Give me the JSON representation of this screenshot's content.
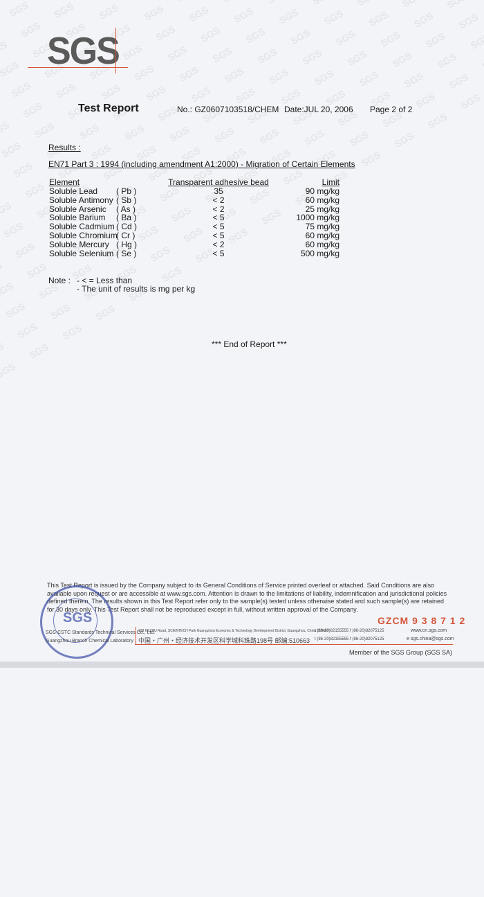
{
  "header": {
    "logo": "SGS",
    "title": "Test Report",
    "report_no": "No.: GZ0607103518/CHEM",
    "date": "Date:JUL 20, 2006",
    "page": "Page 2 of  2"
  },
  "results": {
    "label": "Results :",
    "standard": "EN71 Part 3 : 1994 (including amendment A1:2000) - Migration of Certain Elements",
    "columns": [
      "Element",
      "Transparent adhesive bead",
      "Limit"
    ],
    "rows": [
      {
        "name": "Soluble Lead",
        "symbol": "( Pb )",
        "result": "35",
        "limit": "90 mg/kg"
      },
      {
        "name": "Soluble Antimony",
        "symbol": "( Sb )",
        "result": "< 2",
        "limit": "60 mg/kg"
      },
      {
        "name": "Soluble Arsenic",
        "symbol": "( As )",
        "result": "< 2",
        "limit": "25 mg/kg"
      },
      {
        "name": "Soluble Barium",
        "symbol": "( Ba )",
        "result": "< 5",
        "limit": "1000 mg/kg"
      },
      {
        "name": "Soluble Cadmium",
        "symbol": "( Cd )",
        "result": "< 5",
        "limit": "75 mg/kg"
      },
      {
        "name": "Soluble Chromium",
        "symbol": "( Cr )",
        "result": "< 5",
        "limit": "60 mg/kg"
      },
      {
        "name": "Soluble Mercury",
        "symbol": "( Hg )",
        "result": "< 2",
        "limit": "60 mg/kg"
      },
      {
        "name": "Soluble Selenium",
        "symbol": "( Se )",
        "result": "< 5",
        "limit": "500 mg/kg"
      }
    ]
  },
  "note": {
    "label": "Note :",
    "line1": "- < = Less than",
    "line2": "- The unit of results is mg per kg"
  },
  "end": "*** End of Report ***",
  "footer": {
    "disclaimer": "This Test Report is issued by the Company subject to its General Conditions of Service printed overleaf or attached. Said Conditions are also available upon request or  are accessible at www.sgs.com. Attention is drawn to the limitations of liability, indemnification and jurisdictional policies defined therein. The results shown in this Test Report refer only to the sample(s) tested unless otherwise stated and such sample(s) are retained for 30 days only. This Test Report shall not be reproduced except in full, without written approval of the Company.",
    "serial": "GZCM  9 3 8 7 1 2",
    "company1": "SGS-CSTC Standards Technical Services Co., Ltd.",
    "company2": "Guangzhou Branch Chemical Laboratory",
    "address_en": "198 KEZHU Road, SCIENTECH Park Guangzhou Economic & Technology Development District, Guangzhou, China 510663",
    "address_cn": "中国・广州・经济技术开发区科学城科珠路198号   邮编:510663",
    "tel1": "t (86-20)82155555   f (86-20)82075125",
    "tel2": "t (86-20)82155555   f (86-20)82075125",
    "web": "www.cn.sgs.com",
    "email": "e  sgs.china@sgs.com",
    "member": "Member of the SGS Group (SGS SA)",
    "stamp": "SGS"
  },
  "colors": {
    "accent": "#d4553a",
    "stamp": "#3c4fa8"
  }
}
